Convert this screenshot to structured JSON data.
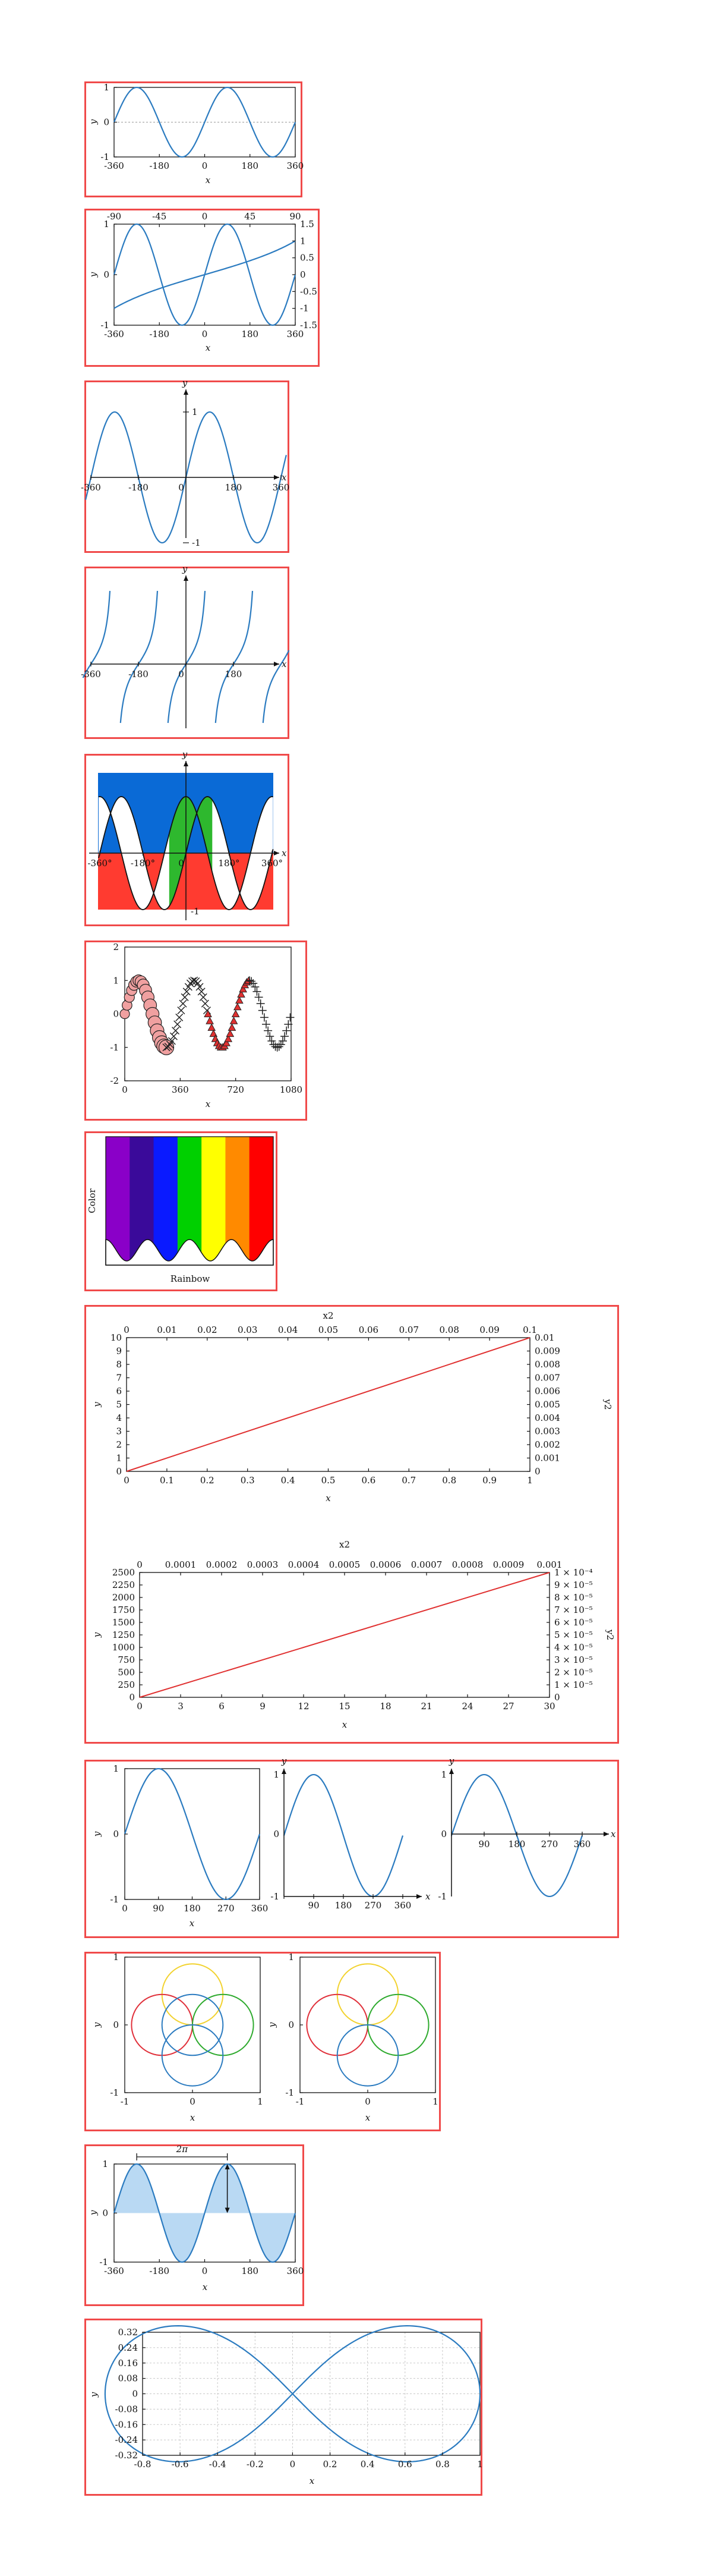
{
  "colors": {
    "frame": "#f04a4a",
    "curve": "#2b7bc0",
    "red": "#e03030",
    "fill_blue": "#b9d9f3"
  },
  "chart_data": [
    {
      "id": "p1",
      "type": "line",
      "xlabel": "x",
      "ylabel": "y",
      "xlim": [
        -360,
        360
      ],
      "ylim": [
        -1,
        1
      ],
      "xticks": [
        "-360",
        "-180",
        "0",
        "180",
        "360"
      ],
      "yticks": [
        "-1",
        "0",
        "1"
      ],
      "series": [
        {
          "values": "sin(x) sampled every 5 deg",
          "x_range": [
            -360,
            360
          ]
        }
      ]
    },
    {
      "id": "p2",
      "type": "line",
      "xlabel": "x",
      "ylabel": "y",
      "xlim": [
        -360,
        360
      ],
      "ylim": [
        -1,
        1
      ],
      "xticks": [
        "-360",
        "-180",
        "0",
        "180",
        "360"
      ],
      "yticks": [
        "-1",
        "0",
        "1"
      ],
      "x2ticks": [
        "-90",
        "-45",
        "0",
        "45",
        "90"
      ],
      "x2lim": [
        -90,
        90
      ],
      "y2ticks": [
        "1.5",
        "1",
        "0.5",
        "0",
        "-0.5",
        "-1",
        "-1.5"
      ],
      "y2lim": [
        -1.5,
        1.5
      ],
      "series": [
        {
          "values": "sin(x)"
        },
        {
          "values": "tan(x2/2) on secondary axes"
        }
      ]
    },
    {
      "id": "p3",
      "type": "line",
      "xlabel": "x",
      "ylabel": "y",
      "xlim": [
        -400,
        400
      ],
      "ylim": [
        -1.2,
        1.2
      ],
      "xticks": [
        "-360",
        "-180",
        "0",
        "180",
        "360"
      ],
      "yticks": [
        "1",
        "-1"
      ],
      "axes": "centered"
    },
    {
      "id": "p4",
      "type": "line",
      "xlabel": "x",
      "ylabel": "y",
      "xlim": [
        -400,
        400
      ],
      "xticks": [
        "-360",
        "-180",
        "0",
        "180"
      ],
      "axes": "centered",
      "series": [
        {
          "values": "tan(x)"
        }
      ]
    },
    {
      "id": "p5",
      "type": "area",
      "xlabel": "x",
      "ylabel": "y",
      "xlim": [
        -400,
        400
      ],
      "xticks": [
        "-360°",
        "-180°",
        "0",
        "180°",
        "360°"
      ],
      "yticks": [
        "-1"
      ],
      "fills": [
        "#0a6ad6",
        "#2eb82e",
        "#ff3b30",
        "#ffffff"
      ]
    },
    {
      "id": "p6",
      "type": "scatter",
      "xlabel": "x",
      "xlim": [
        0,
        1080
      ],
      "ylim": [
        -2,
        2
      ],
      "xticks": [
        "0",
        "360",
        "720",
        "1080"
      ],
      "yticks": [
        "2",
        "1",
        "0",
        "-1",
        "-2"
      ]
    },
    {
      "id": "p7",
      "type": "area",
      "ylabel": "Color",
      "xlabel": "Rainbow",
      "bands": [
        "#8a00c8",
        "#3a0a9a",
        "#0a1aff",
        "#00d000",
        "#ffff00",
        "#ff8a00",
        "#ff0000"
      ]
    },
    {
      "id": "p8a",
      "type": "line",
      "xlabel": "x",
      "ylabel": "y",
      "x2label": "x2",
      "y2label": "y2",
      "xlim": [
        0,
        1
      ],
      "ylim": [
        0,
        10
      ],
      "x2lim": [
        0,
        0.1
      ],
      "y2lim": [
        0,
        0.01
      ],
      "xticks": [
        "0",
        "0.1",
        "0.2",
        "0.3",
        "0.4",
        "0.5",
        "0.6",
        "0.7",
        "0.8",
        "0.9",
        "1"
      ],
      "yticks": [
        "0",
        "1",
        "2",
        "3",
        "4",
        "5",
        "6",
        "7",
        "8",
        "9",
        "10"
      ],
      "x2ticks": [
        "0",
        "0.01",
        "0.02",
        "0.03",
        "0.04",
        "0.05",
        "0.06",
        "0.07",
        "0.08",
        "0.09",
        "0.1"
      ],
      "y2ticks": [
        "0",
        "0.001",
        "0.002",
        "0.003",
        "0.004",
        "0.005",
        "0.006",
        "0.007",
        "0.008",
        "0.009",
        "0.01"
      ],
      "series": [
        {
          "x": [
            0,
            1
          ],
          "y": [
            0,
            10
          ]
        }
      ]
    },
    {
      "id": "p8b",
      "type": "line",
      "xlabel": "x",
      "ylabel": "y",
      "x2label": "x2",
      "y2label": "y2",
      "xlim": [
        0,
        30
      ],
      "ylim": [
        0,
        2500
      ],
      "x2lim": [
        0,
        0.001
      ],
      "xticks": [
        "0",
        "3",
        "6",
        "9",
        "12",
        "15",
        "18",
        "21",
        "24",
        "27",
        "30"
      ],
      "yticks": [
        "0",
        "250",
        "500",
        "750",
        "1000",
        "1250",
        "1500",
        "1750",
        "2000",
        "2250",
        "2500"
      ],
      "x2ticks": [
        "0",
        "0.0001",
        "0.0002",
        "0.0003",
        "0.0004",
        "0.0005",
        "0.0006",
        "0.0007",
        "0.0008",
        "0.0009",
        "0.001"
      ],
      "y2ticks": [
        "0",
        "1 × 10⁻⁵",
        "2 × 10⁻⁵",
        "3 × 10⁻⁵",
        "4 × 10⁻⁵",
        "5 × 10⁻⁵",
        "6 × 10⁻⁵",
        "7 × 10⁻⁵",
        "8 × 10⁻⁵",
        "9 × 10⁻⁵",
        "1 × 10⁻⁴"
      ],
      "series": [
        {
          "x": [
            0,
            30
          ],
          "y": [
            0,
            2500
          ]
        }
      ]
    },
    {
      "id": "p9",
      "type": "line",
      "xlabel": "x",
      "ylabel": "y",
      "xlim": [
        0,
        360
      ],
      "ylim": [
        -1,
        1
      ],
      "xticks": [
        "0",
        "90",
        "180",
        "270",
        "360"
      ],
      "yticks": [
        "1",
        "0",
        "-1"
      ]
    },
    {
      "id": "p10",
      "type": "line",
      "xlabel": "x",
      "ylabel": "y",
      "xlim": [
        -1,
        1
      ],
      "ylim": [
        -1,
        1
      ],
      "xticks": [
        "-1",
        "0",
        "1"
      ],
      "yticks": [
        "1",
        "0",
        "-1"
      ],
      "circles": [
        {
          "cx": 0,
          "cy": 0.45,
          "r": 0.45,
          "color": "#f2d22e"
        },
        {
          "cx": -0.45,
          "cy": 0,
          "r": 0.45,
          "color": "#e0303a"
        },
        {
          "cx": 0.45,
          "cy": 0,
          "r": 0.45,
          "color": "#2eaa2e"
        },
        {
          "cx": 0,
          "cy": -0.45,
          "r": 0.45,
          "color": "#2b7bc0"
        },
        {
          "cx": 0,
          "cy": 0,
          "r": 0.45,
          "color": "#2b7bc0"
        }
      ]
    },
    {
      "id": "p11",
      "type": "area",
      "xlabel": "x",
      "ylabel": "y",
      "xlim": [
        -360,
        360
      ],
      "ylim": [
        -1,
        1
      ],
      "xticks": [
        "-360",
        "-180",
        "0",
        "180",
        "360"
      ],
      "yticks": [
        "1",
        "0",
        "-1"
      ],
      "annotation": "2π"
    },
    {
      "id": "p12",
      "type": "line",
      "xlabel": "x",
      "ylabel": "y",
      "xlim": [
        -0.8,
        1
      ],
      "ylim": [
        -0.32,
        0.32
      ],
      "xticks": [
        "-0.8",
        "-0.6",
        "-0.4",
        "-0.2",
        "0",
        "0.2",
        "0.4",
        "0.6",
        "0.8",
        "1"
      ],
      "yticks": [
        "0.32",
        "0.24",
        "0.16",
        "0.08",
        "0",
        "-0.08",
        "-0.16",
        "-0.24",
        "-0.32"
      ],
      "series": [
        {
          "values": "lemniscate x = cos t / (1+sin²t), y = sin t cos t / (1+sin²t)"
        }
      ]
    }
  ]
}
